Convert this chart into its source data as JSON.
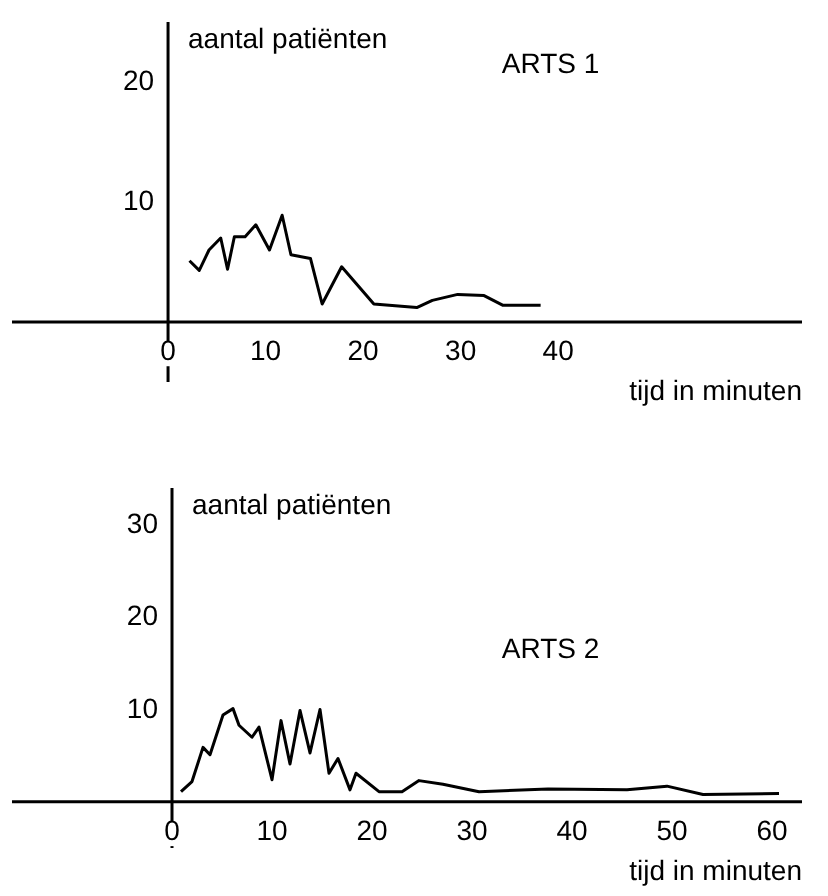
{
  "chart_data": [
    {
      "type": "line",
      "title": "ARTS 1",
      "xlabel": "tijd in minuten",
      "ylabel": "aantal patiënten",
      "xlim": [
        -16,
        65
      ],
      "ylim": [
        -5,
        25
      ],
      "xticks": [
        0,
        10,
        20,
        30,
        40
      ],
      "yticks": [
        10,
        20
      ],
      "grid": false,
      "color": "#000000",
      "x": [
        2.2,
        3.2,
        4.2,
        5.4,
        6.1,
        6.8,
        7.9,
        9.0,
        10.4,
        11.7,
        12.6,
        14.6,
        15.8,
        17.8,
        21.1,
        25.5,
        27.1,
        29.7,
        32.4,
        34.3,
        38.2
      ],
      "values": [
        5.1,
        4.3,
        6.0,
        7.0,
        4.4,
        7.1,
        7.1,
        8.1,
        6.0,
        8.9,
        5.6,
        5.3,
        1.5,
        4.6,
        1.5,
        1.2,
        1.8,
        2.3,
        2.2,
        1.4,
        1.4
      ]
    },
    {
      "type": "line",
      "title": "ARTS 2",
      "xlabel": "tijd in minuten",
      "ylabel": "aantal patiënten",
      "xlim": [
        -16,
        63
      ],
      "ylim": [
        -5,
        34
      ],
      "xticks": [
        0,
        10,
        20,
        30,
        40,
        50,
        60
      ],
      "yticks": [
        10,
        20,
        30
      ],
      "grid": false,
      "color": "#000000",
      "x": [
        0.9,
        2.0,
        3.1,
        3.8,
        5.1,
        6.1,
        6.7,
        8.0,
        8.7,
        10.0,
        10.9,
        11.8,
        12.8,
        13.8,
        14.8,
        15.7,
        16.6,
        17.8,
        18.4,
        20.7,
        23.0,
        24.7,
        27.1,
        30.7,
        37.6,
        45.5,
        49.5,
        53.1,
        60.7
      ],
      "values": [
        1.1,
        2.2,
        5.9,
        5.1,
        9.4,
        10.1,
        8.3,
        7.0,
        8.1,
        2.4,
        8.8,
        4.1,
        9.9,
        5.3,
        10.0,
        3.1,
        4.7,
        1.3,
        3.1,
        1.1,
        1.1,
        2.3,
        1.9,
        1.1,
        1.4,
        1.3,
        1.7,
        0.8,
        0.9
      ]
    }
  ]
}
